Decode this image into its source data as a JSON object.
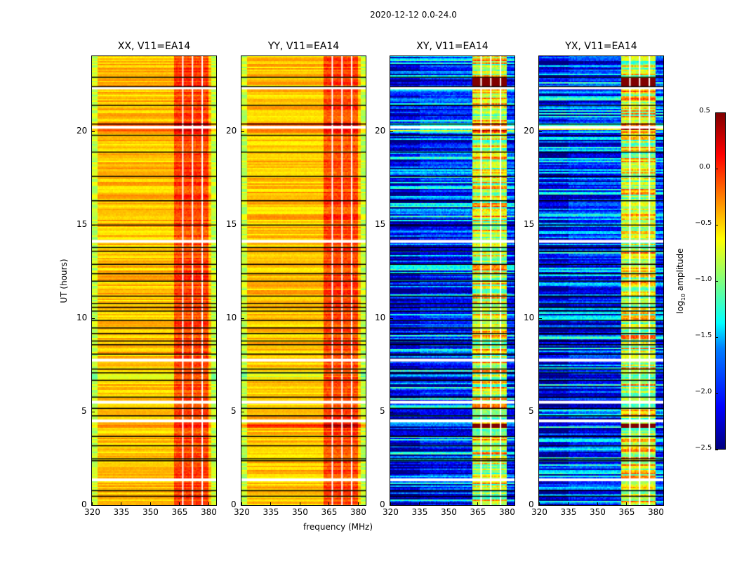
{
  "chart_data": {
    "type": "heatmap",
    "title": "2020-12-12 0.0-24.0",
    "xlabel": "frequency (MHz)",
    "ylabel": "UT (hours)",
    "xlim": [
      320,
      384
    ],
    "ylim": [
      0,
      24
    ],
    "xticks": [
      "320",
      "335",
      "350",
      "365",
      "380"
    ],
    "xtick_values": [
      320,
      335,
      350,
      365,
      380
    ],
    "yticks": [
      "0",
      "5",
      "10",
      "15",
      "20"
    ],
    "ytick_values": [
      0,
      5,
      10,
      15,
      20
    ],
    "panels": [
      {
        "title": "XX, V11=EA14",
        "kind": "parallel"
      },
      {
        "title": "YY, V11=EA14",
        "kind": "parallel"
      },
      {
        "title": "XY, V11=EA14",
        "kind": "cross"
      },
      {
        "title": "YX, V11=EA14",
        "kind": "cross"
      }
    ],
    "colorbar": {
      "label_main": "log",
      "label_sub": "10",
      "label_rest": " amplitude",
      "range": [
        -2.5,
        0.5
      ],
      "colormap": "jet",
      "ticks": [
        "0.5",
        "0.0",
        "−0.5",
        "−1.0",
        "−1.5",
        "−2.0",
        "−2.5"
      ],
      "tick_values": [
        0.5,
        0.0,
        -0.5,
        -1.0,
        -1.5,
        -2.0,
        -2.5
      ]
    },
    "rfi_band_mhz": [
      362,
      380
    ],
    "channel_gaps_mhz": [
      366.8,
      371.8,
      376.8
    ],
    "flagged_gap_times_ut": [
      22.3,
      20.2,
      14.1,
      7.75,
      5.5,
      4.5,
      1.35
    ],
    "scan_boundary_times_ut": [
      22.9,
      22.4,
      21.4,
      20.4,
      19.8,
      18.9,
      17.6,
      16.3,
      15.0,
      13.8,
      13.6,
      12.9,
      12.4,
      12.0,
      11.2,
      10.8,
      10.6,
      10.4,
      9.9,
      9.5,
      9.2,
      8.8,
      8.6,
      8.1,
      7.3,
      7.1,
      6.7,
      5.8,
      5.2,
      4.8,
      3.7,
      3.2,
      2.5,
      2.4,
      0.8,
      0.5
    ]
  }
}
